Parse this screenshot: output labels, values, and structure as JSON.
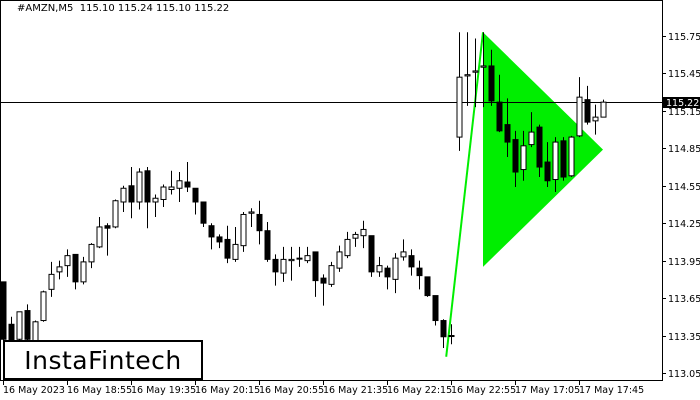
{
  "header": {
    "symbol": "#AMZN,M5",
    "ohlc": "115.10 115.24 115.10 115.22"
  },
  "logo": "InstaFintech",
  "colors": {
    "pattern": "#00ee00",
    "bull_body": "#ffffff",
    "bear_body": "#000000",
    "current_price_bg": "#000000"
  },
  "chart_data": {
    "type": "candlestick",
    "symbol": "#AMZN",
    "timeframe": "M5",
    "ylim": [
      113.02,
      115.85
    ],
    "y_ticks": [
      115.75,
      115.45,
      115.15,
      114.85,
      114.55,
      114.25,
      113.95,
      113.65,
      113.35,
      113.05
    ],
    "y_tick_labels": [
      "115.75",
      "115.45",
      "115.15",
      "114.85",
      "114.55",
      "114.25",
      "113.95",
      "113.65",
      "113.35",
      "113.05"
    ],
    "x_tick_labels": [
      {
        "index": 0,
        "label": "16 May 2023"
      },
      {
        "index": 8,
        "label": "16 May 18:55"
      },
      {
        "index": 16,
        "label": "16 May 19:35"
      },
      {
        "index": 24,
        "label": "16 May 20:15"
      },
      {
        "index": 32,
        "label": "16 May 20:55"
      },
      {
        "index": 40,
        "label": "16 May 21:35"
      },
      {
        "index": 48,
        "label": "16 May 22:15"
      },
      {
        "index": 56,
        "label": "16 May 22:55"
      },
      {
        "index": 64,
        "label": "17 May 17:05"
      },
      {
        "index": 72,
        "label": "17 May 17:45"
      }
    ],
    "current_price": 115.22,
    "current_price_label": "115.22",
    "candles": [
      [
        113.78,
        113.78,
        113.24,
        113.32
      ],
      [
        113.44,
        113.5,
        113.24,
        113.28
      ],
      [
        113.32,
        113.54,
        113.28,
        113.54
      ],
      [
        113.55,
        113.6,
        113.28,
        113.32
      ],
      [
        113.28,
        113.47,
        113.26,
        113.46
      ],
      [
        113.47,
        113.71,
        113.46,
        113.7
      ],
      [
        113.72,
        113.94,
        113.66,
        113.84
      ],
      [
        113.86,
        113.95,
        113.8,
        113.9
      ],
      [
        113.91,
        114.04,
        113.82,
        113.99
      ],
      [
        114.0,
        114.0,
        113.72,
        113.78
      ],
      [
        113.78,
        113.98,
        113.76,
        113.94
      ],
      [
        113.94,
        114.09,
        113.89,
        114.08
      ],
      [
        114.06,
        114.3,
        114.05,
        114.22
      ],
      [
        114.23,
        114.25,
        113.99,
        114.21
      ],
      [
        114.22,
        114.44,
        114.21,
        114.43
      ],
      [
        114.42,
        114.55,
        114.34,
        114.53
      ],
      [
        114.55,
        114.7,
        114.29,
        114.42
      ],
      [
        114.42,
        114.69,
        114.36,
        114.66
      ],
      [
        114.67,
        114.7,
        114.21,
        114.42
      ],
      [
        114.42,
        114.48,
        114.3,
        114.45
      ],
      [
        114.44,
        114.56,
        114.38,
        114.54
      ],
      [
        114.52,
        114.67,
        114.48,
        114.54
      ],
      [
        114.53,
        114.66,
        114.42,
        114.59
      ],
      [
        114.58,
        114.74,
        114.5,
        114.54
      ],
      [
        114.53,
        114.53,
        114.32,
        114.42
      ],
      [
        114.42,
        114.42,
        114.22,
        114.25
      ],
      [
        114.23,
        114.25,
        114.04,
        114.14
      ],
      [
        114.14,
        114.16,
        114.05,
        114.1
      ],
      [
        114.12,
        114.23,
        113.93,
        113.97
      ],
      [
        113.96,
        114.22,
        113.94,
        114.08
      ],
      [
        114.07,
        114.34,
        114.02,
        114.32
      ],
      [
        114.33,
        114.37,
        114.22,
        114.34
      ],
      [
        114.32,
        114.43,
        114.08,
        114.19
      ],
      [
        114.19,
        114.26,
        113.94,
        113.96
      ],
      [
        113.96,
        114.0,
        113.75,
        113.86
      ],
      [
        113.85,
        114.06,
        113.78,
        113.96
      ],
      [
        113.95,
        114.06,
        113.79,
        113.96
      ],
      [
        113.97,
        114.06,
        113.9,
        113.97
      ],
      [
        113.95,
        114.06,
        113.93,
        113.99
      ],
      [
        114.02,
        114.02,
        113.66,
        113.79
      ],
      [
        113.81,
        113.84,
        113.59,
        113.77
      ],
      [
        113.76,
        113.94,
        113.74,
        113.91
      ],
      [
        113.89,
        114.07,
        113.86,
        114.02
      ],
      [
        113.99,
        114.18,
        113.97,
        114.12
      ],
      [
        114.13,
        114.18,
        114.06,
        114.16
      ],
      [
        114.15,
        114.27,
        114.05,
        114.2
      ],
      [
        114.15,
        114.15,
        113.82,
        113.86
      ],
      [
        113.86,
        113.98,
        113.82,
        113.91
      ],
      [
        113.89,
        113.91,
        113.72,
        113.82
      ],
      [
        113.8,
        114.01,
        113.69,
        113.97
      ],
      [
        113.98,
        114.12,
        113.95,
        114.02
      ],
      [
        113.99,
        114.04,
        113.83,
        113.9
      ],
      [
        113.89,
        113.95,
        113.72,
        113.83
      ],
      [
        113.82,
        113.82,
        113.66,
        113.67
      ],
      [
        113.67,
        113.67,
        113.43,
        113.47
      ],
      [
        113.47,
        113.48,
        113.25,
        113.34
      ],
      [
        113.35,
        113.44,
        113.28,
        113.35
      ],
      [
        114.94,
        115.78,
        114.83,
        115.42
      ],
      [
        115.43,
        115.78,
        115.19,
        115.44
      ],
      [
        115.46,
        115.73,
        115.18,
        115.47
      ],
      [
        115.5,
        115.78,
        115.18,
        115.51
      ],
      [
        115.51,
        115.64,
        115.19,
        115.23
      ],
      [
        115.22,
        115.44,
        114.98,
        114.99
      ],
      [
        115.04,
        115.25,
        114.78,
        114.9
      ],
      [
        114.92,
        114.99,
        114.54,
        114.66
      ],
      [
        114.68,
        114.99,
        114.59,
        114.87
      ],
      [
        114.88,
        115.14,
        114.86,
        114.98
      ],
      [
        115.02,
        115.04,
        114.62,
        114.7
      ],
      [
        114.74,
        114.9,
        114.54,
        114.59
      ],
      [
        114.6,
        114.94,
        114.5,
        114.9
      ],
      [
        114.91,
        114.94,
        114.59,
        114.62
      ],
      [
        114.63,
        114.95,
        114.62,
        114.94
      ],
      [
        114.95,
        115.42,
        114.94,
        115.26
      ],
      [
        115.24,
        115.35,
        115.04,
        115.06
      ],
      [
        115.07,
        115.2,
        114.96,
        115.1
      ],
      [
        115.1,
        115.24,
        115.1,
        115.22
      ]
    ],
    "pattern": {
      "type": "bullish pennant",
      "pole": [
        [
          55.4,
          113.18
        ],
        [
          60,
          115.78
        ]
      ],
      "triangle": [
        [
          60,
          115.78
        ],
        [
          60,
          113.9
        ],
        [
          75,
          114.84
        ]
      ]
    }
  }
}
